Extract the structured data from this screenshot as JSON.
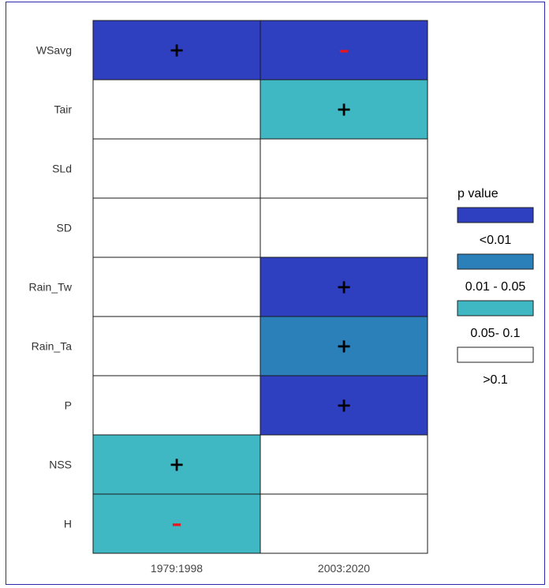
{
  "chart_data": {
    "type": "heatmap",
    "title": "",
    "xlabel": "",
    "ylabel": "",
    "columns": [
      "1979:1998",
      "2003:2020"
    ],
    "rows": [
      "WSavg",
      "Tair",
      "SLd",
      "SD",
      "Rain_Tw",
      "Rain_Ta",
      "P",
      "NSS",
      "H"
    ],
    "cells": [
      [
        {
          "class": "<0.01",
          "sign": "+"
        },
        {
          "class": "<0.01",
          "sign": "-"
        }
      ],
      [
        {
          "class": ">0.1",
          "sign": ""
        },
        {
          "class": "0.05- 0.1",
          "sign": "+"
        }
      ],
      [
        {
          "class": ">0.1",
          "sign": ""
        },
        {
          "class": ">0.1",
          "sign": ""
        }
      ],
      [
        {
          "class": ">0.1",
          "sign": ""
        },
        {
          "class": ">0.1",
          "sign": ""
        }
      ],
      [
        {
          "class": ">0.1",
          "sign": ""
        },
        {
          "class": "<0.01",
          "sign": "+"
        }
      ],
      [
        {
          "class": ">0.1",
          "sign": ""
        },
        {
          "class": "0.01 - 0.05",
          "sign": "+"
        }
      ],
      [
        {
          "class": ">0.1",
          "sign": ""
        },
        {
          "class": "<0.01",
          "sign": "+"
        }
      ],
      [
        {
          "class": "0.05- 0.1",
          "sign": "+"
        },
        {
          "class": ">0.1",
          "sign": ""
        }
      ],
      [
        {
          "class": "0.05- 0.1",
          "sign": "-"
        },
        {
          "class": ">0.1",
          "sign": ""
        }
      ]
    ],
    "legend": {
      "title": "p value",
      "position": "right",
      "items": [
        {
          "label": "<0.01",
          "color": "#2e3fc0"
        },
        {
          "label": "0.01 - 0.05",
          "color": "#2b80b9"
        },
        {
          "label": "0.05- 0.1",
          "color": "#40b8c4"
        },
        {
          "label": ">0.1",
          "color": "#ffffff"
        }
      ]
    },
    "sign_colors": {
      "+": "#000000",
      "-": "#e8141e"
    }
  }
}
